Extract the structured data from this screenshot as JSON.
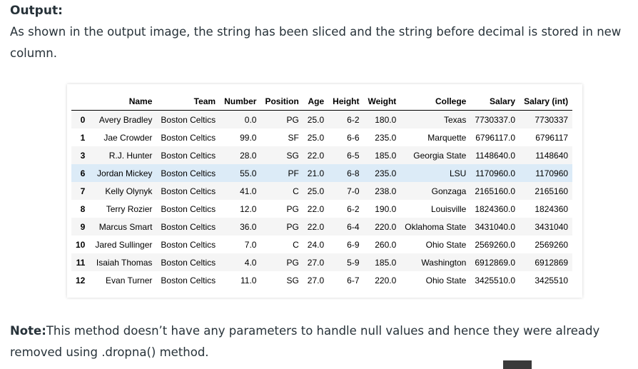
{
  "heading": "Output:",
  "paragraph": "As shown in the output image, the string has been sliced and the string before decimal is stored in new column.",
  "table": {
    "columns": [
      "",
      "Name",
      "Team",
      "Number",
      "Position",
      "Age",
      "Height",
      "Weight",
      "College",
      "Salary",
      "Salary (int)"
    ],
    "highlight_index": "6",
    "rows": [
      [
        "0",
        "Avery Bradley",
        "Boston Celtics",
        "0.0",
        "PG",
        "25.0",
        "6-2",
        "180.0",
        "Texas",
        "7730337.0",
        "7730337"
      ],
      [
        "1",
        "Jae Crowder",
        "Boston Celtics",
        "99.0",
        "SF",
        "25.0",
        "6-6",
        "235.0",
        "Marquette",
        "6796117.0",
        "6796117"
      ],
      [
        "3",
        "R.J. Hunter",
        "Boston Celtics",
        "28.0",
        "SG",
        "22.0",
        "6-5",
        "185.0",
        "Georgia State",
        "1148640.0",
        "1148640"
      ],
      [
        "6",
        "Jordan Mickey",
        "Boston Celtics",
        "55.0",
        "PF",
        "21.0",
        "6-8",
        "235.0",
        "LSU",
        "1170960.0",
        "1170960"
      ],
      [
        "7",
        "Kelly Olynyk",
        "Boston Celtics",
        "41.0",
        "C",
        "25.0",
        "7-0",
        "238.0",
        "Gonzaga",
        "2165160.0",
        "2165160"
      ],
      [
        "8",
        "Terry Rozier",
        "Boston Celtics",
        "12.0",
        "PG",
        "22.0",
        "6-2",
        "190.0",
        "Louisville",
        "1824360.0",
        "1824360"
      ],
      [
        "9",
        "Marcus Smart",
        "Boston Celtics",
        "36.0",
        "PG",
        "22.0",
        "6-4",
        "220.0",
        "Oklahoma State",
        "3431040.0",
        "3431040"
      ],
      [
        "10",
        "Jared Sullinger",
        "Boston Celtics",
        "7.0",
        "C",
        "24.0",
        "6-9",
        "260.0",
        "Ohio State",
        "2569260.0",
        "2569260"
      ],
      [
        "11",
        "Isaiah Thomas",
        "Boston Celtics",
        "4.0",
        "PG",
        "27.0",
        "5-9",
        "185.0",
        "Washington",
        "6912869.0",
        "6912869"
      ],
      [
        "12",
        "Evan Turner",
        "Boston Celtics",
        "11.0",
        "SG",
        "27.0",
        "6-7",
        "220.0",
        "Ohio State",
        "3425510.0",
        "3425510"
      ]
    ]
  },
  "note": {
    "label": "Note:",
    "text": "This method doesn’t have any parameters to handle null values and hence they were already removed using .dropna() method."
  },
  "colors": {
    "text": "#273239",
    "row_stripe": "#f5f5f5",
    "row_highlight": "#dcebf7"
  }
}
